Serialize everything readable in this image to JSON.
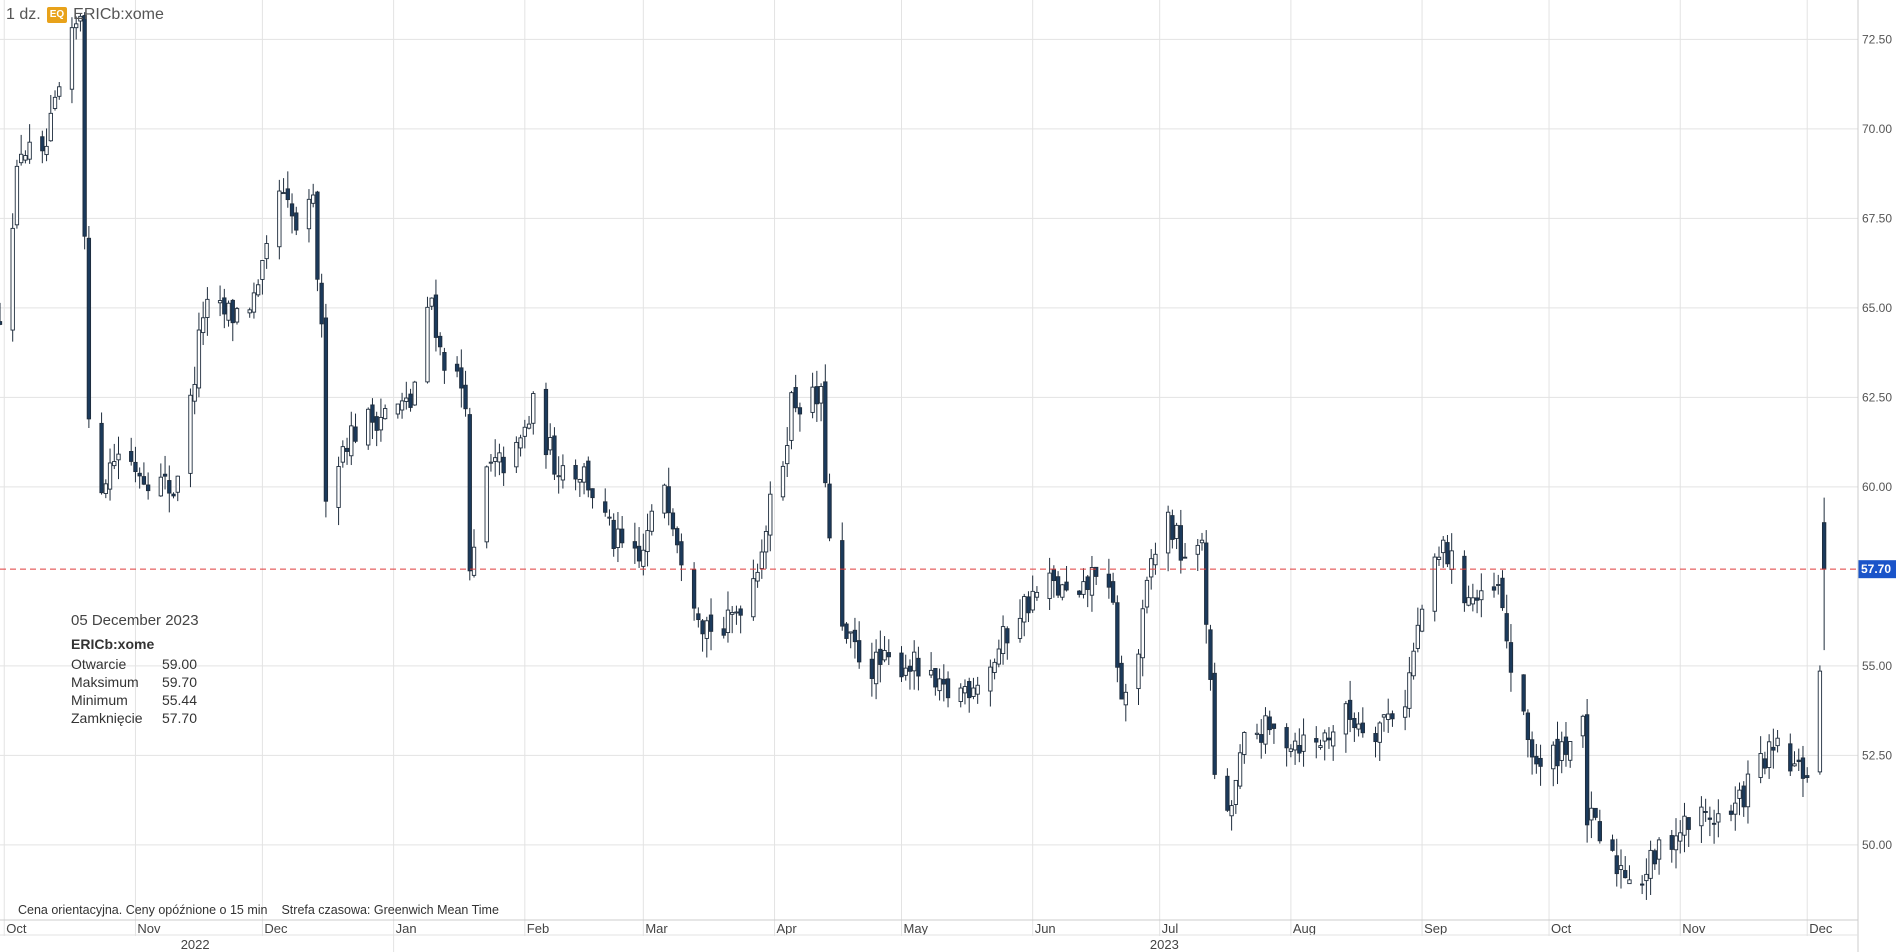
{
  "header": {
    "interval": "1 dz.",
    "badge": "EQ",
    "symbol": "ERICb:xome"
  },
  "tooltip": {
    "date": "05 December 2023",
    "symbol": "ERICb:xome",
    "rows": [
      {
        "label": "Otwarcie",
        "value": "59.00"
      },
      {
        "label": "Maksimum",
        "value": "59.70"
      },
      {
        "label": "Minimum",
        "value": "55.44"
      },
      {
        "label": "Zamknięcie",
        "value": "57.70"
      }
    ]
  },
  "footer": {
    "note": "Cena orientacyjna. Ceny opóźnione o 15 min",
    "timezone": "Strefa czasowa: Greenwich Mean Time"
  },
  "colors": {
    "up_fill": "#ffffff",
    "down_fill": "#1b3a5c",
    "candle_stroke": "#1f2d3d",
    "grid": "#e3e3e3",
    "last_price_line": "#e03b3b",
    "last_price_tag": "#1a54c9"
  },
  "chart_data": {
    "type": "candlestick",
    "title": "",
    "xlabel": "",
    "ylabel": "",
    "ylim": [
      47.9,
      73.6
    ],
    "y_ticks": [
      "72.50",
      "70.00",
      "67.50",
      "65.00",
      "62.50",
      "60.00",
      "55.00",
      "52.50",
      "50.00"
    ],
    "last_price": "57.70",
    "x_month_labels": [
      "Oct",
      "Nov",
      "Dec",
      "Jan",
      "Feb",
      "Mar",
      "Apr",
      "May",
      "Jun",
      "Jul",
      "Aug",
      "Sep",
      "Oct",
      "Nov",
      "Dec"
    ],
    "x_month_dates": [
      "2022-10-01",
      "2022-11-01",
      "2022-12-01",
      "2023-01-01",
      "2023-02-01",
      "2023-03-01",
      "2023-04-01",
      "2023-05-01",
      "2023-06-01",
      "2023-07-01",
      "2023-08-01",
      "2023-09-01",
      "2023-10-01",
      "2023-11-01",
      "2023-12-01"
    ],
    "x_year_labels": [
      {
        "label": "2022",
        "date": "2022-11-15"
      },
      {
        "label": "2023",
        "date": "2023-07-02"
      }
    ],
    "x_range": [
      "2022-09-30",
      "2023-12-13"
    ],
    "grid": true,
    "anchors": [
      [
        "2022-09-30",
        64.9
      ],
      [
        "2022-10-05",
        69.5
      ],
      [
        "2022-10-10",
        69.0
      ],
      [
        "2022-10-14",
        71.0
      ],
      [
        "2022-10-19",
        73.3
      ],
      [
        "2022-10-21",
        61.5
      ],
      [
        "2022-10-24",
        60.2
      ],
      [
        "2022-10-28",
        61.0
      ],
      [
        "2022-11-03",
        60.4
      ],
      [
        "2022-11-10",
        59.9
      ],
      [
        "2022-11-14",
        62.3
      ],
      [
        "2022-11-17",
        64.9
      ],
      [
        "2022-11-24",
        64.8
      ],
      [
        "2022-11-30",
        65.3
      ],
      [
        "2022-12-05",
        68.2
      ],
      [
        "2022-12-09",
        67.2
      ],
      [
        "2022-12-13",
        67.8
      ],
      [
        "2022-12-15",
        64.2
      ],
      [
        "2022-12-16",
        60.0
      ],
      [
        "2022-12-21",
        61.4
      ],
      [
        "2022-12-28",
        62.0
      ],
      [
        "2023-01-05",
        62.3
      ],
      [
        "2023-01-10",
        65.3
      ],
      [
        "2023-01-12",
        63.8
      ],
      [
        "2023-01-18",
        62.6
      ],
      [
        "2023-01-19",
        57.3
      ],
      [
        "2023-01-23",
        60.4
      ],
      [
        "2023-01-30",
        60.9
      ],
      [
        "2023-02-03",
        62.2
      ],
      [
        "2023-02-08",
        60.7
      ],
      [
        "2023-02-15",
        60.4
      ],
      [
        "2023-02-22",
        58.5
      ],
      [
        "2023-02-28",
        57.8
      ],
      [
        "2023-03-06",
        60.2
      ],
      [
        "2023-03-10",
        58.2
      ],
      [
        "2023-03-15",
        56.3
      ],
      [
        "2023-03-20",
        55.9
      ],
      [
        "2023-03-27",
        57.5
      ],
      [
        "2023-04-03",
        60.8
      ],
      [
        "2023-04-05",
        62.4
      ],
      [
        "2023-04-12",
        62.4
      ],
      [
        "2023-04-14",
        58.4
      ],
      [
        "2023-04-17",
        55.8
      ],
      [
        "2023-04-24",
        55.0
      ],
      [
        "2023-05-03",
        55.1
      ],
      [
        "2023-05-10",
        54.2
      ],
      [
        "2023-05-15",
        54.3
      ],
      [
        "2023-05-22",
        55.0
      ],
      [
        "2023-05-29",
        56.6
      ],
      [
        "2023-06-05",
        57.3
      ],
      [
        "2023-06-12",
        56.7
      ],
      [
        "2023-06-16",
        57.8
      ],
      [
        "2023-06-20",
        56.5
      ],
      [
        "2023-06-22",
        53.9
      ],
      [
        "2023-06-26",
        55.4
      ],
      [
        "2023-06-29",
        57.9
      ],
      [
        "2023-07-03",
        59.1
      ],
      [
        "2023-07-06",
        58.2
      ],
      [
        "2023-07-10",
        58.0
      ],
      [
        "2023-07-11",
        58.6
      ],
      [
        "2023-07-14",
        52.1
      ],
      [
        "2023-07-17",
        50.6
      ],
      [
        "2023-07-21",
        52.8
      ],
      [
        "2023-07-25",
        53.2
      ],
      [
        "2023-07-31",
        53.0
      ],
      [
        "2023-08-07",
        52.8
      ],
      [
        "2023-08-14",
        53.6
      ],
      [
        "2023-08-21",
        53.3
      ],
      [
        "2023-08-28",
        54.1
      ],
      [
        "2023-09-01",
        56.6
      ],
      [
        "2023-09-06",
        58.3
      ],
      [
        "2023-09-11",
        57.1
      ],
      [
        "2023-09-15",
        56.7
      ],
      [
        "2023-09-19",
        57.1
      ],
      [
        "2023-09-22",
        55.0
      ],
      [
        "2023-09-25",
        53.3
      ],
      [
        "2023-09-29",
        52.0
      ],
      [
        "2023-10-04",
        52.8
      ],
      [
        "2023-10-09",
        53.2
      ],
      [
        "2023-10-10",
        50.8
      ],
      [
        "2023-10-16",
        49.5
      ],
      [
        "2023-10-23",
        49.1
      ],
      [
        "2023-10-30",
        50.3
      ],
      [
        "2023-11-06",
        50.8
      ],
      [
        "2023-11-13",
        50.8
      ],
      [
        "2023-11-20",
        52.3
      ],
      [
        "2023-11-24",
        52.6
      ],
      [
        "2023-11-29",
        52.0
      ],
      [
        "2023-12-01",
        52.1
      ],
      [
        "2023-12-04",
        54.8
      ],
      [
        "2023-12-05",
        57.7
      ]
    ],
    "last_candle": {
      "date": "2023-12-05",
      "open": 59.0,
      "high": 59.7,
      "low": 55.44,
      "close": 57.7
    }
  }
}
